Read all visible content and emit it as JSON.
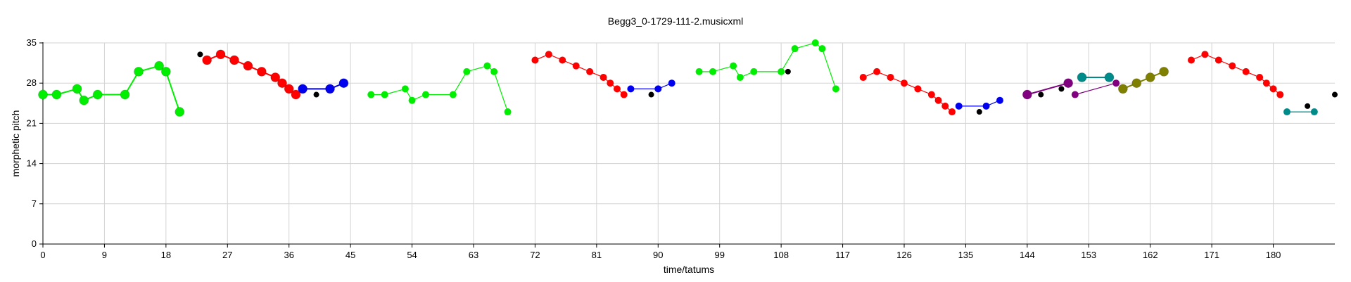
{
  "chart_data": {
    "type": "scatter",
    "title": "Begg3_0-1729-111-2.musicxml",
    "xlabel": "time/tatums",
    "ylabel": "morphetic pitch",
    "xlim": [
      0,
      189
    ],
    "ylim": [
      0,
      35
    ],
    "x_ticks": [
      "0",
      "9",
      "18",
      "27",
      "36",
      "45",
      "54",
      "63",
      "72",
      "81",
      "90",
      "99",
      "108",
      "117",
      "126",
      "135",
      "144",
      "153",
      "162",
      "171",
      "180"
    ],
    "y_ticks": [
      "0",
      "7",
      "14",
      "21",
      "28",
      "35"
    ],
    "grid": true,
    "series": [
      {
        "color": "#00ee00",
        "connected": true,
        "size": "large",
        "points": [
          [
            0,
            26
          ],
          [
            2,
            26
          ],
          [
            5,
            27
          ],
          [
            6,
            25
          ],
          [
            8,
            26
          ],
          [
            12,
            26
          ],
          [
            14,
            30
          ],
          [
            17,
            31
          ],
          [
            18,
            30
          ],
          [
            20,
            23
          ]
        ]
      },
      {
        "color": "#000000",
        "connected": false,
        "size": "small",
        "points": [
          [
            23,
            33
          ]
        ]
      },
      {
        "color": "#ff0000",
        "connected": true,
        "size": "large",
        "points": [
          [
            24,
            32
          ],
          [
            26,
            33
          ],
          [
            28,
            32
          ],
          [
            30,
            31
          ],
          [
            32,
            30
          ],
          [
            34,
            29
          ],
          [
            35,
            28
          ],
          [
            36,
            27
          ],
          [
            37,
            26
          ]
        ]
      },
      {
        "color": "#0000ee",
        "connected": true,
        "size": "large",
        "points": [
          [
            38,
            27
          ],
          [
            42,
            27
          ],
          [
            44,
            28
          ]
        ]
      },
      {
        "color": "#000000",
        "connected": false,
        "size": "small",
        "points": [
          [
            40,
            26
          ]
        ]
      },
      {
        "color": "#00ee00",
        "connected": true,
        "size": "medium",
        "points": [
          [
            48,
            26
          ],
          [
            50,
            26
          ],
          [
            53,
            27
          ],
          [
            54,
            25
          ],
          [
            56,
            26
          ],
          [
            60,
            26
          ],
          [
            62,
            30
          ],
          [
            65,
            31
          ],
          [
            66,
            30
          ],
          [
            68,
            23
          ]
        ]
      },
      {
        "color": "#ff0000",
        "connected": true,
        "size": "medium",
        "points": [
          [
            72,
            32
          ],
          [
            74,
            33
          ],
          [
            76,
            32
          ],
          [
            78,
            31
          ],
          [
            80,
            30
          ],
          [
            82,
            29
          ],
          [
            83,
            28
          ],
          [
            84,
            27
          ],
          [
            85,
            26
          ]
        ]
      },
      {
        "color": "#0000ee",
        "connected": true,
        "size": "medium",
        "points": [
          [
            86,
            27
          ],
          [
            90,
            27
          ],
          [
            92,
            28
          ]
        ]
      },
      {
        "color": "#000000",
        "connected": false,
        "size": "small",
        "points": [
          [
            89,
            26
          ]
        ]
      },
      {
        "color": "#00ee00",
        "connected": true,
        "size": "medium",
        "points": [
          [
            96,
            30
          ],
          [
            98,
            30
          ],
          [
            101,
            31
          ],
          [
            102,
            29
          ],
          [
            104,
            30
          ],
          [
            108,
            30
          ],
          [
            110,
            34
          ],
          [
            113,
            35
          ],
          [
            114,
            34
          ],
          [
            116,
            27
          ]
        ]
      },
      {
        "color": "#000000",
        "connected": false,
        "size": "small",
        "points": [
          [
            109,
            30
          ]
        ]
      },
      {
        "color": "#ff0000",
        "connected": true,
        "size": "medium",
        "points": [
          [
            120,
            29
          ],
          [
            122,
            30
          ],
          [
            124,
            29
          ],
          [
            126,
            28
          ],
          [
            128,
            27
          ],
          [
            130,
            26
          ],
          [
            131,
            25
          ],
          [
            132,
            24
          ],
          [
            133,
            23
          ]
        ]
      },
      {
        "color": "#0000ee",
        "connected": true,
        "size": "medium",
        "points": [
          [
            134,
            24
          ],
          [
            138,
            24
          ],
          [
            140,
            25
          ]
        ]
      },
      {
        "color": "#000000",
        "connected": false,
        "size": "small",
        "points": [
          [
            137,
            23
          ]
        ]
      },
      {
        "color": "#800080",
        "connected": true,
        "size": "large",
        "points": [
          [
            144,
            26
          ],
          [
            150,
            28
          ]
        ]
      },
      {
        "color": "#800080",
        "connected": true,
        "size": "medium",
        "points": [
          [
            151,
            26
          ],
          [
            157,
            28
          ]
        ]
      },
      {
        "color": "#008b8b",
        "connected": true,
        "size": "large",
        "points": [
          [
            152,
            29
          ],
          [
            156,
            29
          ]
        ]
      },
      {
        "color": "#808000",
        "connected": true,
        "size": "large",
        "points": [
          [
            158,
            27
          ],
          [
            160,
            28
          ],
          [
            162,
            29
          ],
          [
            164,
            30
          ]
        ]
      },
      {
        "color": "#000000",
        "connected": false,
        "size": "small",
        "points": [
          [
            146,
            26
          ],
          [
            149,
            27
          ]
        ]
      },
      {
        "color": "#ff0000",
        "connected": true,
        "size": "medium",
        "points": [
          [
            168,
            32
          ],
          [
            170,
            33
          ],
          [
            172,
            32
          ],
          [
            174,
            31
          ],
          [
            176,
            30
          ],
          [
            178,
            29
          ],
          [
            179,
            28
          ],
          [
            180,
            27
          ],
          [
            181,
            26
          ]
        ]
      },
      {
        "color": "#008b8b",
        "connected": true,
        "size": "medium",
        "points": [
          [
            182,
            23
          ],
          [
            186,
            23
          ]
        ]
      },
      {
        "color": "#000000",
        "connected": false,
        "size": "small",
        "points": [
          [
            185,
            24
          ],
          [
            189,
            26
          ]
        ]
      }
    ]
  }
}
